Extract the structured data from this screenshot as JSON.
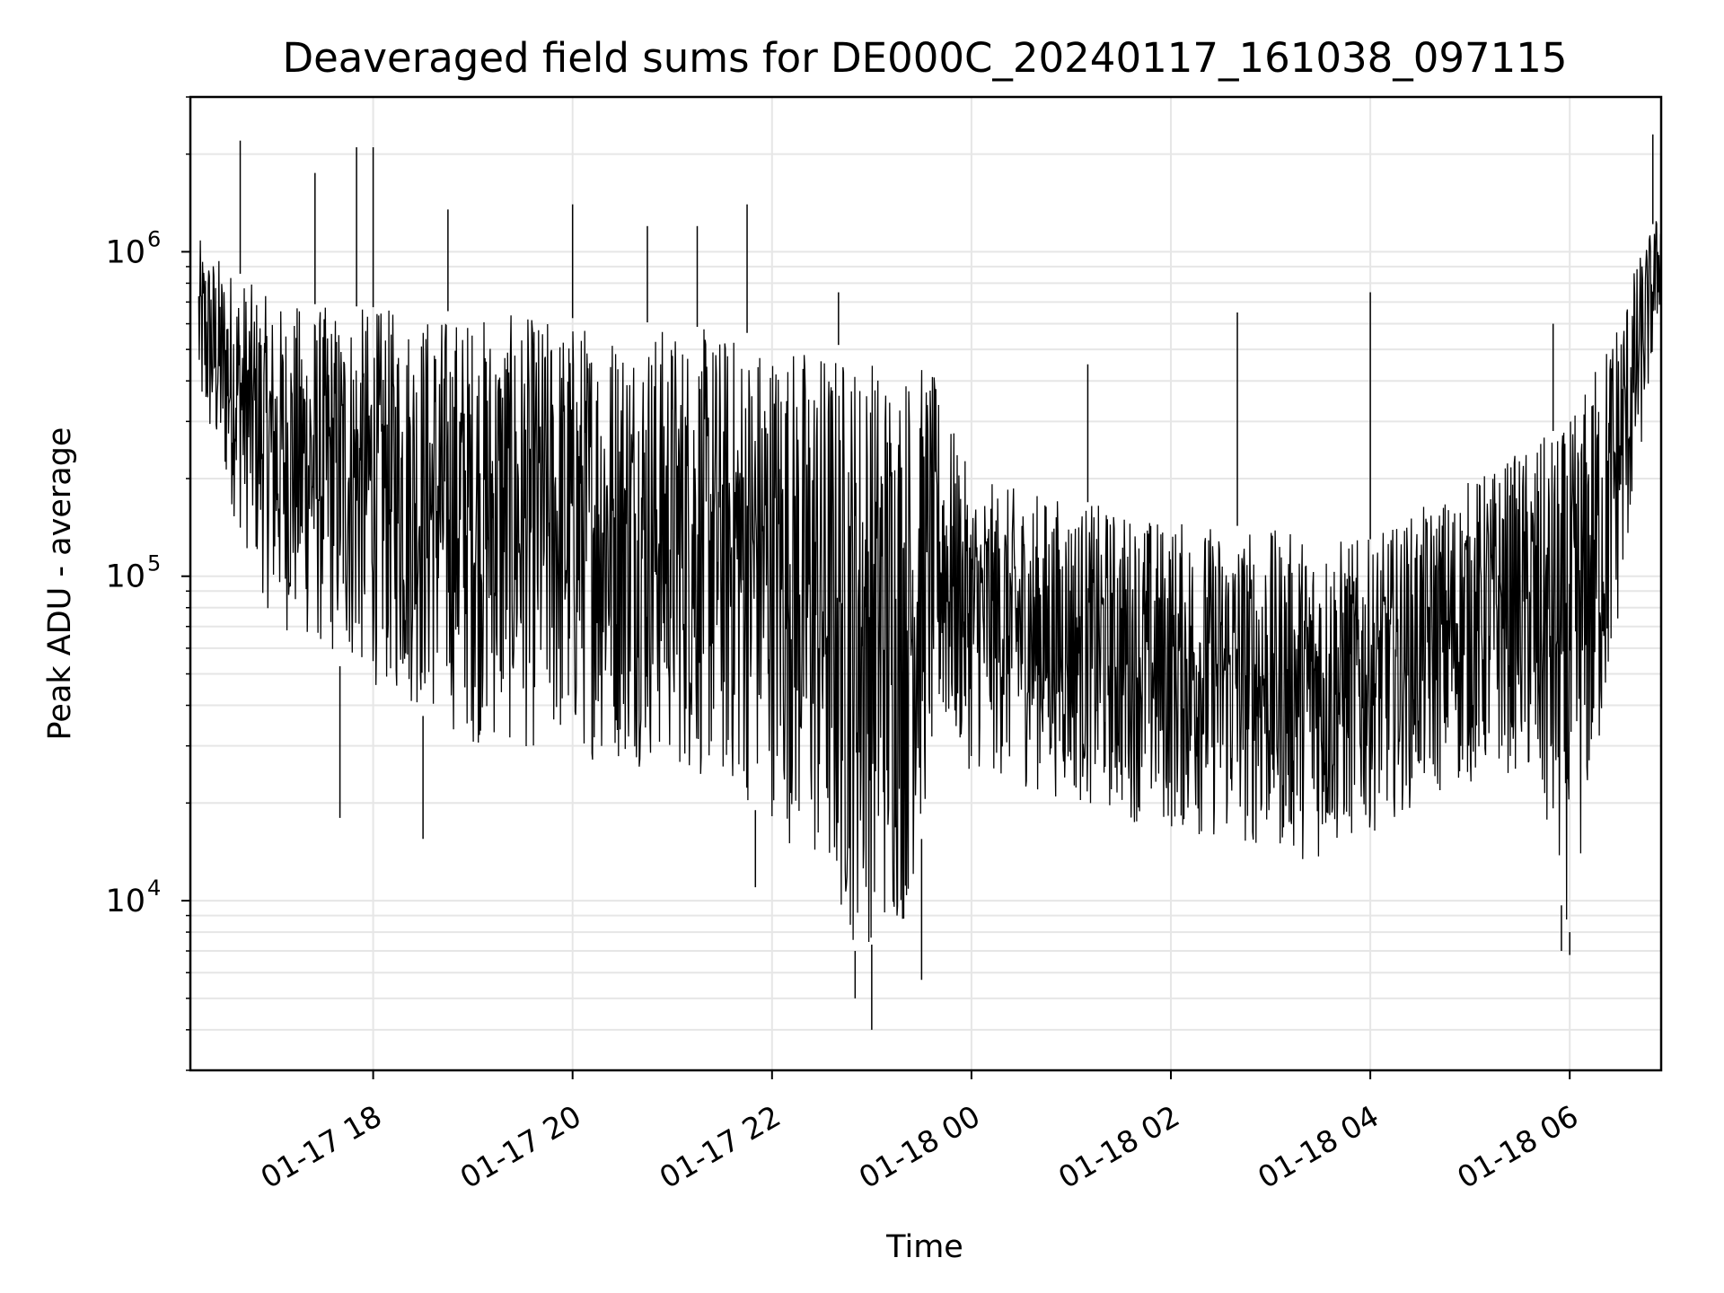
{
  "chart_data": {
    "type": "line",
    "title": "Deaveraged field sums for DE000C_20240117_161038_097115",
    "xlabel": "Time",
    "ylabel": "Peak ADU - average",
    "yscale": "log",
    "ylim": [
      3000,
      3000000
    ],
    "xlim": [
      "2024-01-17T16:10",
      "2024-01-18T06:55"
    ],
    "grid": true,
    "legend": "none",
    "line_color": "#000000",
    "grid_color": "#e6e6e6",
    "x_ticks": [
      {
        "label": "01-17 18",
        "time": "2024-01-17T18:00"
      },
      {
        "label": "01-17 20",
        "time": "2024-01-17T20:00"
      },
      {
        "label": "01-17 22",
        "time": "2024-01-17T22:00"
      },
      {
        "label": "01-18 00",
        "time": "2024-01-18T00:00"
      },
      {
        "label": "01-18 02",
        "time": "2024-01-18T02:00"
      },
      {
        "label": "01-18 04",
        "time": "2024-01-18T04:00"
      },
      {
        "label": "01-18 06",
        "time": "2024-01-18T06:00"
      }
    ],
    "y_ticks": [
      {
        "base": "10",
        "exp": "4",
        "value": 10000
      },
      {
        "base": "10",
        "exp": "5",
        "value": 100000
      },
      {
        "base": "10",
        "exp": "6",
        "value": 1000000
      }
    ],
    "series": [
      {
        "points": [
          [
            "2024-01-17T16:15",
            600000
          ],
          [
            "2024-01-17T16:30",
            500000
          ],
          [
            "2024-01-17T16:45",
            250000
          ],
          [
            "2024-01-17T17:00",
            180000
          ],
          [
            "2024-01-17T17:30",
            160000
          ],
          [
            "2024-01-17T18:00",
            150000
          ],
          [
            "2024-01-17T18:30",
            140000
          ],
          [
            "2024-01-17T19:00",
            135000
          ],
          [
            "2024-01-17T19:30",
            130000
          ],
          [
            "2024-01-17T20:00",
            130000
          ],
          [
            "2024-01-17T20:30",
            120000
          ],
          [
            "2024-01-17T21:00",
            110000
          ],
          [
            "2024-01-17T21:30",
            100000
          ],
          [
            "2024-01-17T22:00",
            90000
          ],
          [
            "2024-01-17T22:30",
            70000
          ],
          [
            "2024-01-17T22:50",
            35000
          ],
          [
            "2024-01-17T23:00",
            30000
          ],
          [
            "2024-01-17T23:20",
            45000
          ],
          [
            "2024-01-17T23:35",
            120000
          ],
          [
            "2024-01-17T23:45",
            70000
          ],
          [
            "2024-01-18T00:00",
            45000
          ],
          [
            "2024-01-18T00:30",
            40000
          ],
          [
            "2024-01-18T01:00",
            35000
          ],
          [
            "2024-01-18T01:30",
            33000
          ],
          [
            "2024-01-18T02:00",
            32000
          ],
          [
            "2024-01-18T02:30",
            30000
          ],
          [
            "2024-01-18T03:00",
            30000
          ],
          [
            "2024-01-18T03:30",
            30000
          ],
          [
            "2024-01-18T04:00",
            32000
          ],
          [
            "2024-01-18T04:30",
            38000
          ],
          [
            "2024-01-18T05:00",
            45000
          ],
          [
            "2024-01-18T05:30",
            55000
          ],
          [
            "2024-01-18T05:55",
            60000
          ],
          [
            "2024-01-18T06:05",
            30000
          ],
          [
            "2024-01-18T06:20",
            200000
          ],
          [
            "2024-01-18T06:35",
            400000
          ],
          [
            "2024-01-18T06:50",
            1000000
          ]
        ],
        "upper_envelope": [
          [
            "2024-01-17T16:15",
            1100000
          ],
          [
            "2024-01-17T17:00",
            700000
          ],
          [
            "2024-01-17T19:00",
            650000
          ],
          [
            "2024-01-17T21:00",
            600000
          ],
          [
            "2024-01-17T22:00",
            550000
          ],
          [
            "2024-01-17T23:00",
            500000
          ],
          [
            "2024-01-17T23:35",
            450000
          ],
          [
            "2024-01-18T00:00",
            200000
          ],
          [
            "2024-01-18T02:00",
            150000
          ],
          [
            "2024-01-18T04:00",
            130000
          ],
          [
            "2024-01-18T05:00",
            200000
          ],
          [
            "2024-01-18T06:00",
            300000
          ],
          [
            "2024-01-18T06:55",
            1400000
          ]
        ],
        "lower_envelope": [
          [
            "2024-01-17T16:15",
            300000
          ],
          [
            "2024-01-17T17:00",
            70000
          ],
          [
            "2024-01-17T19:00",
            30000
          ],
          [
            "2024-01-17T21:00",
            25000
          ],
          [
            "2024-01-17T22:00",
            18000
          ],
          [
            "2024-01-17T22:50",
            7000
          ],
          [
            "2024-01-17T23:20",
            8000
          ],
          [
            "2024-01-17T23:40",
            30000
          ],
          [
            "2024-01-18T00:00",
            25000
          ],
          [
            "2024-01-18T02:00",
            16000
          ],
          [
            "2024-01-18T03:30",
            13000
          ],
          [
            "2024-01-18T04:30",
            20000
          ],
          [
            "2024-01-18T05:30",
            25000
          ],
          [
            "2024-01-18T06:00",
            8000
          ],
          [
            "2024-01-18T06:20",
            30000
          ],
          [
            "2024-01-18T06:55",
            700000
          ]
        ],
        "spikes": [
          [
            "2024-01-17T16:40",
            2200000
          ],
          [
            "2024-01-17T17:25",
            1750000
          ],
          [
            "2024-01-17T17:50",
            2100000
          ],
          [
            "2024-01-17T18:00",
            2100000
          ],
          [
            "2024-01-17T18:45",
            1350000
          ],
          [
            "2024-01-17T20:00",
            1400000
          ],
          [
            "2024-01-17T21:15",
            1200000
          ],
          [
            "2024-01-17T21:45",
            1400000
          ],
          [
            "2024-01-17T22:40",
            750000
          ],
          [
            "2024-01-18T02:40",
            650000
          ],
          [
            "2024-01-18T04:00",
            750000
          ],
          [
            "2024-01-18T06:50",
            2300000
          ],
          [
            "2024-01-17T20:45",
            1200000
          ],
          [
            "2024-01-18T01:10",
            450000
          ],
          [
            "2024-01-18T05:50",
            600000
          ]
        ],
        "dips": [
          [
            "2024-01-17T17:40",
            18000
          ],
          [
            "2024-01-17T18:30",
            15500
          ],
          [
            "2024-01-17T21:50",
            11000
          ],
          [
            "2024-01-17T22:50",
            5000
          ],
          [
            "2024-01-17T23:00",
            4000
          ],
          [
            "2024-01-17T23:30",
            5700
          ],
          [
            "2024-01-18T05:55",
            7000
          ],
          [
            "2024-01-18T06:00",
            6800
          ]
        ]
      }
    ]
  }
}
